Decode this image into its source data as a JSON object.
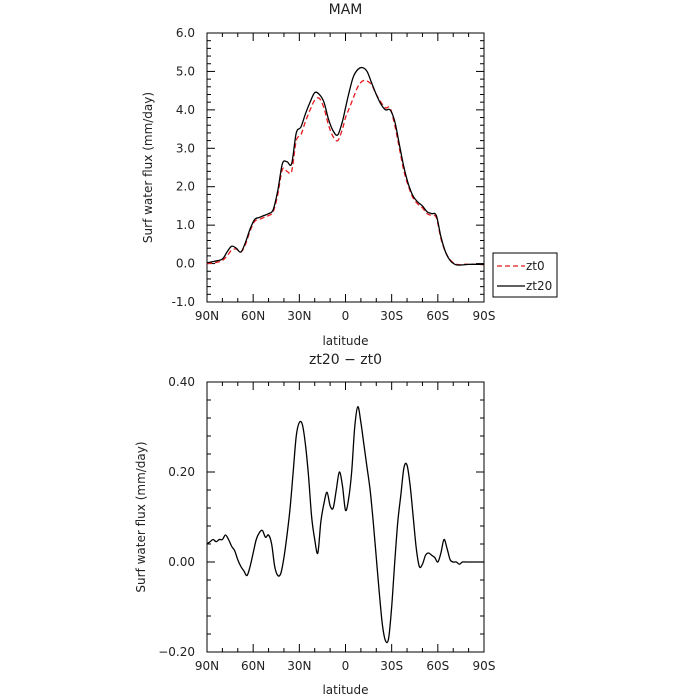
{
  "chart_data": [
    {
      "type": "line",
      "title": "MAM",
      "xlabel": "latitude",
      "ylabel": "Surf water flux (mm/day)",
      "xlim": [
        90,
        -90
      ],
      "ylim": [
        -1.0,
        6.0
      ],
      "xticks": [
        90,
        60,
        30,
        0,
        -30,
        -60,
        -90
      ],
      "xticklabels": [
        "90N",
        "60N",
        "30N",
        "0",
        "30S",
        "60S",
        "90S"
      ],
      "yticks": [
        -1.0,
        0.0,
        1.0,
        2.0,
        3.0,
        4.0,
        5.0,
        6.0
      ],
      "yticklabels": [
        "-1.0",
        "0.0",
        "1.0",
        "2.0",
        "3.0",
        "4.0",
        "5.0",
        "6.0"
      ],
      "legend": {
        "placement": "outside-right-bottom"
      },
      "series": [
        {
          "name": "zt0",
          "color": "#e8191c",
          "dash": "dashed",
          "x": [
            90,
            85,
            80,
            77,
            74,
            71,
            68,
            65,
            62,
            59,
            56,
            53,
            50,
            47,
            44,
            41,
            38,
            35,
            32,
            29,
            26,
            23,
            20,
            17,
            14,
            11,
            8,
            5,
            2,
            0,
            -2,
            -5,
            -8,
            -11,
            -14,
            -17,
            -20,
            -23,
            -26,
            -29,
            -32,
            -35,
            -38,
            -41,
            -44,
            -47,
            -50,
            -53,
            -56,
            -59,
            -62,
            -65,
            -68,
            -71,
            -74,
            -77,
            -80,
            -85,
            -90
          ],
          "y": [
            0.0,
            0.02,
            0.08,
            0.2,
            0.35,
            0.38,
            0.3,
            0.5,
            0.85,
            1.1,
            1.15,
            1.2,
            1.25,
            1.35,
            1.8,
            2.45,
            2.4,
            2.4,
            3.2,
            3.35,
            3.7,
            4.0,
            4.25,
            4.3,
            4.05,
            3.6,
            3.3,
            3.2,
            3.5,
            3.8,
            4.0,
            4.3,
            4.6,
            4.75,
            4.75,
            4.65,
            4.4,
            4.2,
            4.05,
            4.05,
            3.6,
            3.0,
            2.4,
            2.0,
            1.7,
            1.55,
            1.45,
            1.3,
            1.25,
            1.2,
            0.65,
            0.3,
            0.1,
            0.0,
            -0.03,
            -0.02,
            -0.02,
            -0.02,
            -0.03
          ]
        },
        {
          "name": "zt20",
          "color": "#000000",
          "dash": "solid",
          "x": [
            90,
            85,
            80,
            77,
            74,
            71,
            68,
            65,
            62,
            59,
            56,
            53,
            50,
            47,
            44,
            41,
            38,
            35,
            32,
            29,
            26,
            23,
            20,
            17,
            14,
            11,
            8,
            5,
            2,
            0,
            -2,
            -5,
            -8,
            -11,
            -14,
            -17,
            -20,
            -23,
            -26,
            -29,
            -32,
            -35,
            -38,
            -41,
            -44,
            -47,
            -50,
            -53,
            -56,
            -59,
            -62,
            -65,
            -68,
            -71,
            -74,
            -77,
            -80,
            -85,
            -90
          ],
          "y": [
            0.02,
            0.06,
            0.12,
            0.3,
            0.45,
            0.4,
            0.3,
            0.55,
            0.9,
            1.15,
            1.2,
            1.25,
            1.3,
            1.4,
            1.9,
            2.6,
            2.65,
            2.6,
            3.4,
            3.55,
            3.9,
            4.2,
            4.45,
            4.4,
            4.2,
            3.75,
            3.45,
            3.35,
            3.7,
            4.05,
            4.4,
            4.85,
            5.05,
            5.1,
            5.0,
            4.7,
            4.4,
            4.15,
            4.0,
            4.0,
            3.7,
            3.1,
            2.5,
            2.05,
            1.75,
            1.6,
            1.5,
            1.35,
            1.3,
            1.25,
            0.7,
            0.3,
            0.08,
            -0.02,
            -0.04,
            -0.03,
            -0.02,
            -0.02,
            -0.02
          ]
        }
      ]
    },
    {
      "type": "line",
      "title": "zt20 − zt0",
      "xlabel": "latitude",
      "ylabel": "Surf water flux (mm/day)",
      "xlim": [
        90,
        -90
      ],
      "ylim": [
        -0.2,
        0.4
      ],
      "xticks": [
        90,
        60,
        30,
        0,
        -30,
        -60,
        -90
      ],
      "xticklabels": [
        "90N",
        "60N",
        "30N",
        "0",
        "30S",
        "60S",
        "90S"
      ],
      "yticks": [
        -0.2,
        0.0,
        0.2,
        0.4
      ],
      "yticklabels": [
        "−0.20",
        "0.00",
        "0.20",
        "0.40"
      ],
      "series": [
        {
          "color": "#000000",
          "dash": "solid",
          "x": [
            90,
            88,
            86,
            84,
            82,
            80,
            78,
            76,
            74,
            72,
            70,
            68,
            66,
            64,
            62,
            60,
            58,
            56,
            54,
            52,
            50,
            48,
            46,
            44,
            42,
            40,
            38,
            36,
            34,
            32,
            30,
            28,
            26,
            24,
            22,
            20,
            18,
            16,
            14,
            12,
            10,
            8,
            6,
            4,
            2,
            0,
            -2,
            -4,
            -6,
            -8,
            -10,
            -12,
            -14,
            -16,
            -18,
            -20,
            -22,
            -24,
            -26,
            -28,
            -30,
            -32,
            -34,
            -36,
            -38,
            -40,
            -42,
            -44,
            -46,
            -48,
            -50,
            -52,
            -54,
            -56,
            -58,
            -60,
            -62,
            -64,
            -66,
            -68,
            -70,
            -72,
            -74,
            -76,
            -78,
            -80,
            -82,
            -84,
            -86,
            -88,
            -90
          ],
          "y": [
            0.04,
            0.045,
            0.05,
            0.045,
            0.05,
            0.05,
            0.06,
            0.05,
            0.035,
            0.025,
            0.005,
            -0.01,
            -0.02,
            -0.03,
            -0.01,
            0.02,
            0.05,
            0.065,
            0.07,
            0.055,
            0.06,
            0.04,
            -0.01,
            -0.03,
            -0.025,
            0.01,
            0.06,
            0.12,
            0.2,
            0.28,
            0.31,
            0.305,
            0.26,
            0.19,
            0.1,
            0.05,
            0.02,
            0.09,
            0.13,
            0.155,
            0.125,
            0.12,
            0.16,
            0.2,
            0.17,
            0.115,
            0.14,
            0.2,
            0.3,
            0.345,
            0.31,
            0.26,
            0.21,
            0.16,
            0.09,
            0.01,
            -0.07,
            -0.14,
            -0.175,
            -0.17,
            -0.1,
            0.0,
            0.09,
            0.15,
            0.21,
            0.215,
            0.17,
            0.1,
            0.03,
            -0.01,
            -0.005,
            0.015,
            0.02,
            0.015,
            0.01,
            0.0,
            0.02,
            0.05,
            0.03,
            0.005,
            0.0,
            0.0,
            -0.005,
            0.0,
            0.0,
            0.0,
            0.0,
            0.0,
            0.0,
            0.0,
            0.0
          ]
        }
      ]
    }
  ]
}
